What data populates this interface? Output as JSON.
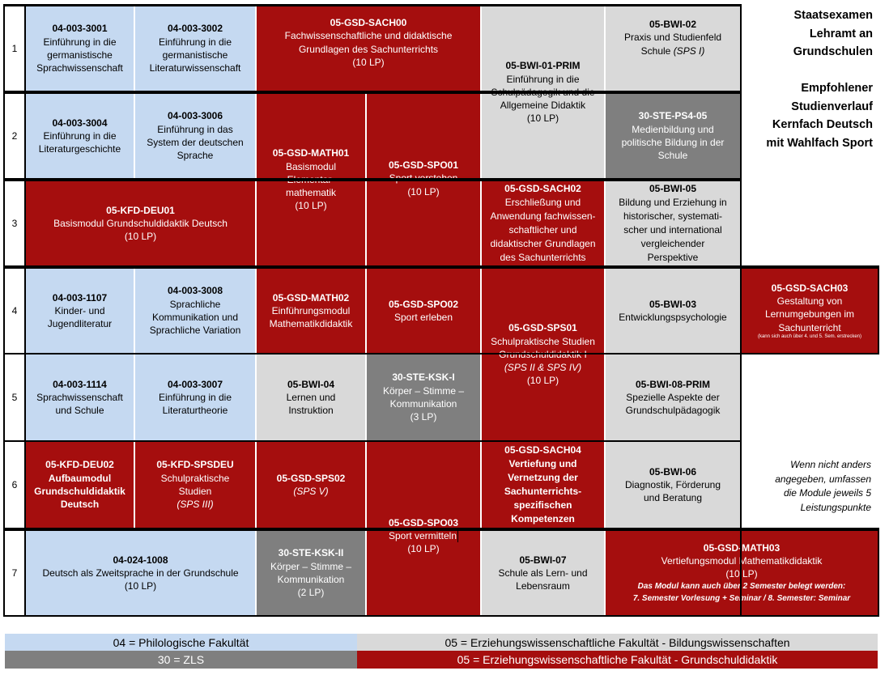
{
  "title": [
    "Staatsexamen",
    "Lehramt an",
    "Grundschulen",
    "",
    "Empfohlener",
    "Studienverlauf",
    "Kernfach Deutsch",
    "mit Wahlfach Sport"
  ],
  "rows": [
    "1",
    "2",
    "3",
    "4",
    "5",
    "6",
    "7"
  ],
  "modules": {
    "m_04_003_3001": {
      "code": "04-003-3001",
      "text": [
        "Einführung in die",
        "germanistische",
        "Sprachwissenschaft"
      ]
    },
    "m_04_003_3002": {
      "code": "04-003-3002",
      "text": [
        "Einführung in die",
        "germanistische",
        "Literaturwissenschaft"
      ]
    },
    "m_05_gsd_sach00": {
      "code": "05-GSD-SACH00",
      "text": [
        "Fachwissenschaftliche und didaktische",
        "Grundlagen des Sachunterrichts",
        "(10 LP)"
      ]
    },
    "m_05_bwi_01_prim": {
      "code": "05-BWI-01-PRIM",
      "text": [
        "Einführung in die",
        "Schulpädagogik und die",
        "Allgemeine Didaktik",
        "(10 LP)"
      ]
    },
    "m_05_bwi_02": {
      "code": "05-BWI-02",
      "text": [
        "Praxis und Studienfeld",
        "Schule"
      ],
      "italic": "(SPS I)"
    },
    "m_04_003_3004": {
      "code": "04-003-3004",
      "text": [
        "Einführung in die",
        "Literaturgeschichte"
      ]
    },
    "m_04_003_3006": {
      "code": "04-003-3006",
      "text": [
        "Einführung in das",
        "System der deutschen",
        "Sprache"
      ]
    },
    "m_05_gsd_math01": {
      "code": "05-GSD-MATH01",
      "text": [
        "Basismodul",
        "Elementar-",
        "mathematik",
        "(10 LP)"
      ]
    },
    "m_05_gsd_spo01": {
      "code": "05-GSD-SPO01",
      "text": [
        "Sport verstehen",
        "(10 LP)"
      ]
    },
    "m_30_ste_ps4_05": {
      "code": "30-STE-PS4-05",
      "text": [
        "Medienbildung und",
        "politische Bildung in der",
        "Schule"
      ]
    },
    "m_05_kfd_deu01": {
      "code": "05-KFD-DEU01",
      "text": [
        "Basismodul Grundschuldidaktik Deutsch",
        "(10 LP)"
      ]
    },
    "m_05_gsd_sach02": {
      "code": "05-GSD-SACH02",
      "text": [
        "Erschließung und",
        "Anwendung fachwissen-",
        "schaftlicher und",
        "didaktischer Grundlagen",
        "des Sachunterrichts"
      ]
    },
    "m_05_bwi_05": {
      "code": "05-BWI-05",
      "text": [
        "Bildung und Erziehung in",
        "historischer, systemati-",
        "scher und international",
        "vergleichender",
        "Perspektive"
      ]
    },
    "m_04_003_1107": {
      "code": "04-003-1107",
      "text": [
        "Kinder- und",
        "Jugendliteratur"
      ]
    },
    "m_04_003_3008": {
      "code": "04-003-3008",
      "text": [
        "Sprachliche",
        "Kommunikation und",
        "Sprachliche Variation"
      ]
    },
    "m_05_gsd_math02": {
      "code": "05-GSD-MATH02",
      "text": [
        "Einführungsmodul",
        "Mathematikdidaktik"
      ]
    },
    "m_05_gsd_spo02": {
      "code": "05-GSD-SPO02",
      "text": [
        "Sport erleben"
      ]
    },
    "m_05_gsd_sps01": {
      "code": "05-GSD-SPS01",
      "text": [
        "Schulpraktische Studien",
        "Grundschuldidaktik I"
      ],
      "italic": "(SPS II & SPS IV)",
      "lp": "(10 LP)"
    },
    "m_05_bwi_03": {
      "code": "05-BWI-03",
      "text": [
        "Entwicklungspsychologie"
      ]
    },
    "m_05_gsd_sach03": {
      "code": "05-GSD-SACH03",
      "text": [
        "Gestaltung von",
        "Lernumgebungen im",
        "Sachunterricht"
      ],
      "tiny": "(kann sich auch über 4. und 5. Sem. erstrecken)"
    },
    "m_04_003_1114": {
      "code": "04-003-1114",
      "text": [
        "Sprachwissenschaft",
        "und Schule"
      ]
    },
    "m_04_003_3007": {
      "code": "04-003-3007",
      "text": [
        "Einführung in die",
        "Literaturtheorie"
      ]
    },
    "m_05_bwi_04": {
      "code": "05-BWI-04",
      "text": [
        "Lernen und",
        "Instruktion"
      ]
    },
    "m_30_ste_ksk_i": {
      "code": "30-STE-KSK-I",
      "text": [
        "Körper – Stimme –",
        "Kommunikation",
        "(3 LP)"
      ]
    },
    "m_05_bwi_08_prim": {
      "code": "05-BWI-08-PRIM",
      "text": [
        "Spezielle Aspekte der",
        "Grundschulpädagogik"
      ]
    },
    "m_05_kfd_deu02": {
      "code": "05-KFD-DEU02",
      "text": [
        "Aufbaumodul",
        "Grundschuldidaktik",
        "Deutsch"
      ]
    },
    "m_05_kfd_spsdeu": {
      "code": "05-KFD-SPSDEU",
      "text": [
        "Schulpraktische",
        "Studien"
      ],
      "italic": "(SPS III)"
    },
    "m_05_gsd_sps02": {
      "code": "05-GSD-SPS02",
      "italic": "(SPS V)"
    },
    "m_05_gsd_sach04": {
      "code": "05-GSD-SACH04",
      "text": [
        "Vertiefung und",
        "Vernetzung der",
        "Sachunterrichts-",
        "spezifischen",
        "Kompetenzen"
      ]
    },
    "m_05_bwi_06": {
      "code": "05-BWI-06",
      "text": [
        "Diagnostik, Förderung",
        "und Beratung"
      ]
    },
    "m_05_gsd_spo03": {
      "code": "05-GSD-SPO03",
      "text": [
        "Sport vermitteln",
        "(10 LP)"
      ]
    },
    "m_04_024_1008": {
      "code": "04-024-1008",
      "text": [
        "Deutsch als Zweitsprache in der Grundschule",
        "(10 LP)"
      ]
    },
    "m_30_ste_ksk_ii": {
      "code": "30-STE-KSK-II",
      "text": [
        "Körper – Stimme –",
        "Kommunikation",
        "(2 LP)"
      ]
    },
    "m_05_bwi_07": {
      "code": "05-BWI-07",
      "text": [
        "Schule als Lern- und",
        "Lebensraum"
      ]
    },
    "m_05_gsd_math03": {
      "code": "05-GSD-MATH03",
      "text": [
        "Vertiefungsmodul Mathematikdidaktik",
        "(10 LP)"
      ],
      "note": [
        "Das Modul kann auch über 2 Semester belegt werden:",
        "7. Semester Vorlesung + Seminar / 8. Semester: Seminar"
      ]
    }
  },
  "side_note": [
    "Wenn nicht anders",
    "angegeben, umfassen",
    "die Module jeweils 5",
    "Leistungspunkte"
  ],
  "legend": {
    "philologische": "04 = Philologische Fakultät",
    "bildungswissenschaften": "05 = Erziehungswissenschaftliche Fakultät - Bildungswissenschaften",
    "zls": "30 = ZLS",
    "grundschuldidaktik": "05 = Erziehungswissenschaftliche Fakultät - Grundschuldidaktik"
  },
  "colors": {
    "blue": "#c5d9f1",
    "red": "#a50e0e",
    "light_gray": "#d9d9d9",
    "dark_gray": "#7f7f7f"
  }
}
